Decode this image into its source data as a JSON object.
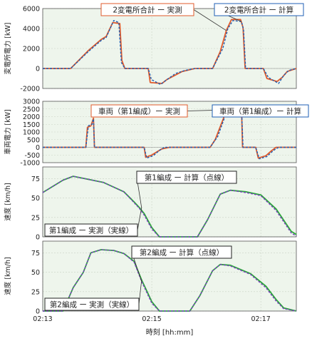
{
  "chart_data": [
    {
      "type": "line",
      "ylabel": "変電所電力 [kW]",
      "ylim": [
        -2000,
        6000
      ],
      "yticks": [
        "6000",
        "4000",
        "2000",
        "0",
        "-2000"
      ],
      "ytick_values": [
        6000,
        4000,
        2000,
        0,
        -2000
      ],
      "grid": true,
      "series": [
        {
          "name": "2変電所合計 ー 実測",
          "color": "#e05a2b",
          "dash": false,
          "points": [
            [
              0,
              0
            ],
            [
              0.55,
              0
            ],
            [
              0.9,
              1800
            ],
            [
              1.15,
              2900
            ],
            [
              1.25,
              3200
            ],
            [
              1.38,
              4600
            ],
            [
              1.52,
              4500
            ],
            [
              1.56,
              800
            ],
            [
              1.62,
              0
            ],
            [
              2.08,
              0
            ],
            [
              2.12,
              -1400
            ],
            [
              2.35,
              -1500
            ],
            [
              2.45,
              -1100
            ],
            [
              2.6,
              -700
            ],
            [
              2.75,
              -300
            ],
            [
              3.0,
              0
            ],
            [
              3.35,
              0
            ],
            [
              3.5,
              1700
            ],
            [
              3.62,
              3800
            ],
            [
              3.72,
              4900
            ],
            [
              3.9,
              4900
            ],
            [
              3.95,
              4100
            ],
            [
              3.99,
              0
            ],
            [
              4.35,
              0
            ],
            [
              4.42,
              -1000
            ],
            [
              4.62,
              -1300
            ],
            [
              4.72,
              -900
            ],
            [
              4.82,
              -300
            ],
            [
              5.0,
              0
            ]
          ]
        },
        {
          "name": "2変電所合計 ー 計算",
          "color": "#1f5fb4",
          "dash": true,
          "points": [
            [
              0,
              0
            ],
            [
              0.55,
              0
            ],
            [
              0.9,
              1700
            ],
            [
              1.15,
              2800
            ],
            [
              1.25,
              3100
            ],
            [
              1.4,
              4800
            ],
            [
              1.5,
              4600
            ],
            [
              1.55,
              600
            ],
            [
              1.62,
              0
            ],
            [
              2.08,
              0
            ],
            [
              2.14,
              -1100
            ],
            [
              2.32,
              -1600
            ],
            [
              2.48,
              -1000
            ],
            [
              2.62,
              -500
            ],
            [
              2.8,
              -200
            ],
            [
              3.0,
              0
            ],
            [
              3.35,
              0
            ],
            [
              3.55,
              2000
            ],
            [
              3.65,
              4000
            ],
            [
              3.75,
              4800
            ],
            [
              3.92,
              4700
            ],
            [
              3.96,
              3800
            ],
            [
              4.0,
              0
            ],
            [
              4.35,
              0
            ],
            [
              4.45,
              -900
            ],
            [
              4.65,
              -1500
            ],
            [
              4.75,
              -700
            ],
            [
              4.85,
              -200
            ],
            [
              5.0,
              0
            ]
          ]
        }
      ],
      "callouts": [
        {
          "text": "2変電所合計 ー 実測",
          "series": 0,
          "border": "#e05a2b"
        },
        {
          "text": "2変電所合計 ー 計算",
          "series": 1,
          "border": "#1f5fb4"
        }
      ]
    },
    {
      "type": "line",
      "ylabel": "車両電力 [kW]",
      "ylim": [
        -1000,
        3000
      ],
      "yticks": [
        "3000",
        "2500",
        "2000",
        "1500",
        "1000",
        "500",
        "0",
        "-500",
        "-1000"
      ],
      "ytick_values": [
        3000,
        2500,
        2000,
        1500,
        1000,
        500,
        0,
        -500,
        -1000
      ],
      "grid": true,
      "series": [
        {
          "name": "車両（第1編成）ー 実測",
          "color": "#e05a2b",
          "dash": false,
          "points": [
            [
              0,
              0
            ],
            [
              0.85,
              0
            ],
            [
              0.88,
              1300
            ],
            [
              0.95,
              1400
            ],
            [
              1.0,
              1900
            ],
            [
              1.02,
              0
            ],
            [
              2.0,
              0
            ],
            [
              2.03,
              -650
            ],
            [
              2.15,
              -500
            ],
            [
              2.25,
              -300
            ],
            [
              2.35,
              -100
            ],
            [
              2.5,
              0
            ],
            [
              3.3,
              0
            ],
            [
              3.4,
              500
            ],
            [
              3.6,
              2200
            ],
            [
              3.75,
              2450
            ],
            [
              3.92,
              2500
            ],
            [
              3.94,
              0
            ],
            [
              4.2,
              0
            ],
            [
              4.25,
              -700
            ],
            [
              4.4,
              -550
            ],
            [
              4.5,
              -250
            ],
            [
              4.6,
              0
            ],
            [
              5.0,
              0
            ]
          ]
        },
        {
          "name": "車両（第1編成）ー 計算",
          "color": "#1f5fb4",
          "dash": true,
          "points": [
            [
              0,
              0
            ],
            [
              0.85,
              0
            ],
            [
              0.9,
              1400
            ],
            [
              0.97,
              1500
            ],
            [
              1.0,
              1850
            ],
            [
              1.02,
              0
            ],
            [
              2.0,
              0
            ],
            [
              2.05,
              -700
            ],
            [
              2.18,
              -550
            ],
            [
              2.3,
              -200
            ],
            [
              2.4,
              0
            ],
            [
              3.3,
              0
            ],
            [
              3.45,
              700
            ],
            [
              3.62,
              2250
            ],
            [
              3.78,
              2400
            ],
            [
              3.92,
              2450
            ],
            [
              3.95,
              0
            ],
            [
              4.2,
              0
            ],
            [
              4.27,
              -750
            ],
            [
              4.42,
              -600
            ],
            [
              4.55,
              -200
            ],
            [
              4.65,
              0
            ],
            [
              5.0,
              0
            ]
          ]
        }
      ],
      "callouts": [
        {
          "text": "車両（第1編成）ー 実測",
          "series": 0,
          "border": "#e05a2b"
        },
        {
          "text": "車両（第1編成）ー 計算",
          "series": 1,
          "border": "#1f5fb4"
        }
      ]
    },
    {
      "type": "line",
      "ylabel": "速度 [km/h]",
      "ylim": [
        0,
        90
      ],
      "yticks": [
        "75",
        "50",
        "25",
        "0"
      ],
      "ytick_values": [
        75,
        50,
        25,
        0
      ],
      "grid": true,
      "series": [
        {
          "name": "第1編成 ー 実測（実線）",
          "color": "#2aa838",
          "dash": false,
          "points": [
            [
              0,
              57
            ],
            [
              0.4,
              73
            ],
            [
              0.6,
              78
            ],
            [
              0.75,
              76
            ],
            [
              1.2,
              70
            ],
            [
              1.6,
              58
            ],
            [
              1.8,
              45
            ],
            [
              1.9,
              38
            ],
            [
              2.0,
              30
            ],
            [
              2.15,
              12
            ],
            [
              2.3,
              0
            ],
            [
              3.05,
              0
            ],
            [
              3.25,
              22
            ],
            [
              3.5,
              55
            ],
            [
              3.7,
              60
            ],
            [
              4.0,
              58
            ],
            [
              4.3,
              54
            ],
            [
              4.6,
              36
            ],
            [
              4.9,
              7
            ],
            [
              5.0,
              3
            ]
          ]
        },
        {
          "name": "第1編成 ー 計算（点線）",
          "color": "#7a3fc0",
          "dash": true,
          "points": [
            [
              0,
              57
            ],
            [
              0.4,
              73
            ],
            [
              0.6,
              78
            ],
            [
              0.75,
              76
            ],
            [
              1.2,
              70
            ],
            [
              1.6,
              58
            ],
            [
              1.8,
              44
            ],
            [
              1.9,
              37
            ],
            [
              2.0,
              28
            ],
            [
              2.15,
              10
            ],
            [
              2.3,
              0
            ],
            [
              3.05,
              0
            ],
            [
              3.25,
              22
            ],
            [
              3.5,
              55
            ],
            [
              3.7,
              60
            ],
            [
              4.0,
              57
            ],
            [
              4.3,
              53
            ],
            [
              4.6,
              34
            ],
            [
              4.9,
              5
            ],
            [
              5.0,
              1
            ]
          ]
        }
      ],
      "callouts": [
        {
          "text": "第1編成 ー 計算（点線）",
          "series": 1,
          "border": "#222222"
        },
        {
          "text": "第1編成 ー 実測（実線）",
          "series": 0,
          "border": "#222222"
        }
      ]
    },
    {
      "type": "line",
      "ylabel": "速度 [km/h]",
      "ylim": [
        0,
        90
      ],
      "yticks": [
        "75",
        "50",
        "25",
        "0"
      ],
      "ytick_values": [
        75,
        50,
        25,
        0
      ],
      "grid": true,
      "series": [
        {
          "name": "第2編成 ー 実測（実線）",
          "color": "#2aa838",
          "dash": false,
          "points": [
            [
              0,
              0
            ],
            [
              0.4,
              0
            ],
            [
              0.6,
              30
            ],
            [
              0.8,
              50
            ],
            [
              0.95,
              75
            ],
            [
              1.15,
              79
            ],
            [
              1.4,
              78
            ],
            [
              1.6,
              74
            ],
            [
              1.8,
              64
            ],
            [
              1.95,
              40
            ],
            [
              2.15,
              12
            ],
            [
              2.3,
              0
            ],
            [
              2.9,
              0
            ],
            [
              3.1,
              20
            ],
            [
              3.35,
              52
            ],
            [
              3.5,
              60
            ],
            [
              3.7,
              59
            ],
            [
              4.1,
              48
            ],
            [
              4.4,
              32
            ],
            [
              4.6,
              15
            ],
            [
              4.75,
              4
            ],
            [
              5.0,
              0
            ]
          ]
        },
        {
          "name": "第2編成 ー 計算（点線）",
          "color": "#7a3fc0",
          "dash": true,
          "points": [
            [
              0,
              0
            ],
            [
              0.4,
              0
            ],
            [
              0.6,
              30
            ],
            [
              0.8,
              50
            ],
            [
              0.95,
              75
            ],
            [
              1.15,
              79
            ],
            [
              1.4,
              78
            ],
            [
              1.6,
              74
            ],
            [
              1.8,
              63
            ],
            [
              1.95,
              38
            ],
            [
              2.15,
              10
            ],
            [
              2.3,
              0
            ],
            [
              2.9,
              0
            ],
            [
              3.1,
              20
            ],
            [
              3.35,
              52
            ],
            [
              3.5,
              60
            ],
            [
              3.7,
              58
            ],
            [
              4.1,
              47
            ],
            [
              4.4,
              30
            ],
            [
              4.6,
              13
            ],
            [
              4.75,
              3
            ],
            [
              5.0,
              0
            ]
          ]
        }
      ],
      "callouts": [
        {
          "text": "第2編成 ー 計算（点線）",
          "series": 1,
          "border": "#222222"
        },
        {
          "text": "第2編成 ー 実測（実線）",
          "series": 0,
          "border": "#222222"
        }
      ]
    }
  ],
  "x_axis": {
    "label": "時刻 [hh:mm]",
    "range": [
      0,
      5
    ],
    "ticks": [
      {
        "value": 0,
        "label": "02:13"
      },
      {
        "value": 2.15,
        "label": "02:15"
      },
      {
        "value": 4.3,
        "label": "02:17"
      }
    ],
    "unit_note": "minutes after 02:13"
  }
}
